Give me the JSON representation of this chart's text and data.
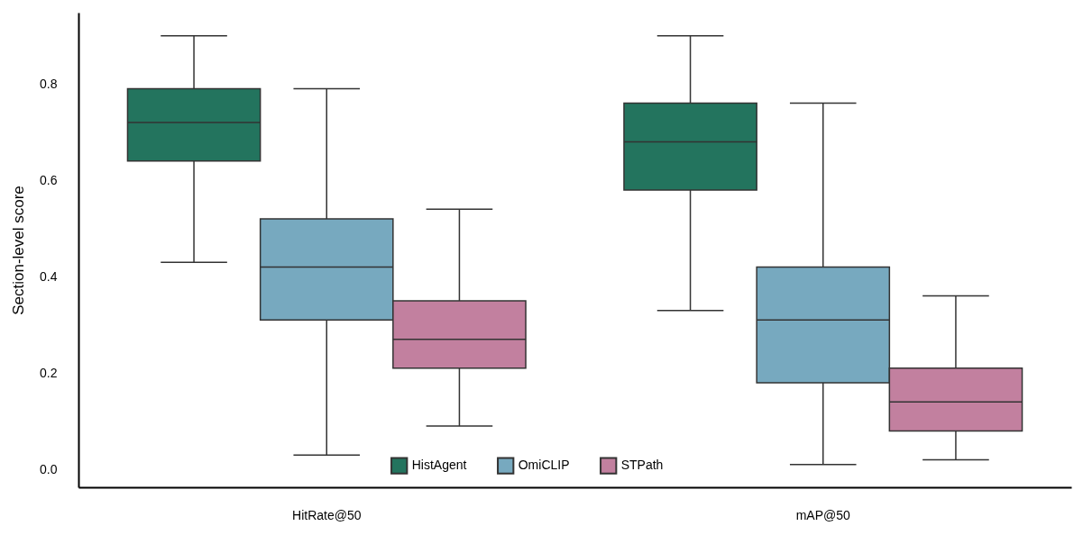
{
  "chart_data": {
    "type": "box",
    "ylabel": "Section-level score",
    "categories": [
      "HitRate@50",
      "mAP@50"
    ],
    "series": [
      {
        "name": "HistAgent",
        "color": "#23745e",
        "boxes": [
          {
            "low": 0.43,
            "q1": 0.64,
            "median": 0.72,
            "q3": 0.79,
            "high": 0.9
          },
          {
            "low": 0.33,
            "q1": 0.58,
            "median": 0.68,
            "q3": 0.76,
            "high": 0.9
          }
        ]
      },
      {
        "name": "OmiCLIP",
        "color": "#77a9bf",
        "boxes": [
          {
            "low": 0.03,
            "q1": 0.31,
            "median": 0.42,
            "q3": 0.52,
            "high": 0.79
          },
          {
            "low": 0.01,
            "q1": 0.18,
            "median": 0.31,
            "q3": 0.42,
            "high": 0.76
          }
        ]
      },
      {
        "name": "STPath",
        "color": "#c2809f",
        "boxes": [
          {
            "low": 0.09,
            "q1": 0.21,
            "median": 0.27,
            "q3": 0.35,
            "high": 0.54
          },
          {
            "low": 0.02,
            "q1": 0.08,
            "median": 0.14,
            "q3": 0.21,
            "high": 0.36
          }
        ]
      }
    ],
    "ylim": [
      -0.037,
      0.948
    ],
    "yticks": [
      {
        "value": 0,
        "label": "0.0"
      },
      0.2,
      0.4,
      0.6,
      0.8
    ],
    "legend": "bottom"
  }
}
